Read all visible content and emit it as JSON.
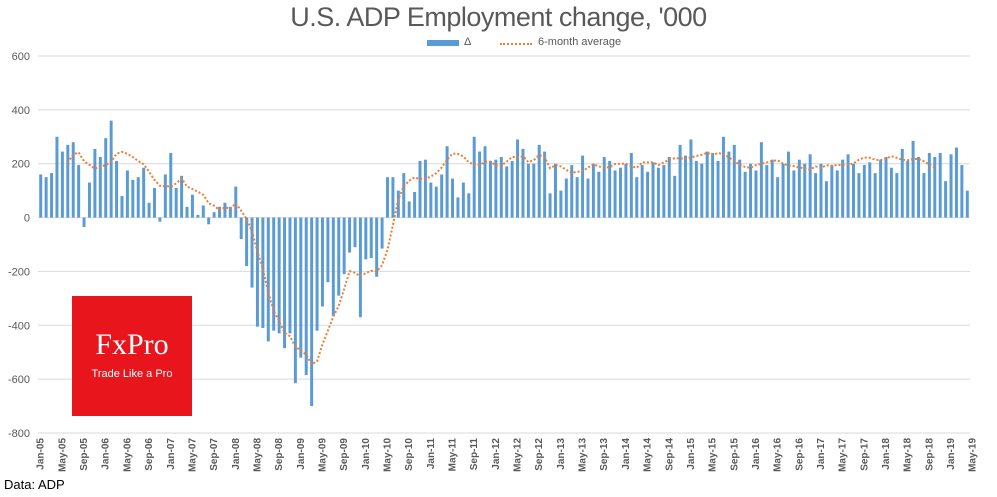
{
  "chart_data": {
    "type": "bar",
    "title": "U.S. ADP Employment change, '000",
    "xlabel": "",
    "ylabel": "",
    "ylim": [
      -800,
      600
    ],
    "yticks": [
      600,
      400,
      200,
      0,
      -200,
      -400,
      -600,
      -800
    ],
    "grid": true,
    "legend_position": "top-center",
    "legend": [
      "Δ",
      "6-month average"
    ],
    "x_tick_labels": [
      "Jan-05",
      "May-05",
      "Sep-05",
      "Jan-06",
      "May-06",
      "Sep-06",
      "Jan-07",
      "May-07",
      "Sep-07",
      "Jan-08",
      "May-08",
      "Sep-08",
      "Jan-09",
      "May-09",
      "Sep-09",
      "Jan-10",
      "May-10",
      "Sep-10",
      "Jan-11",
      "May-11",
      "Sep-11",
      "Jan-12",
      "May-12",
      "Sep-12",
      "Jan-13",
      "May-13",
      "Sep-13",
      "Jan-14",
      "May-14",
      "Sep-14",
      "Jan-15",
      "May-15",
      "Sep-15",
      "Jan-16",
      "May-16",
      "Sep-16",
      "Jan-17",
      "May-17",
      "Sep-17",
      "Jan-18",
      "May-18",
      "Sep-18",
      "Jan-19",
      "May-19"
    ],
    "start_month": "Jan-05",
    "series": [
      {
        "name": "Δ",
        "kind": "bar",
        "color": "#5b9bd5",
        "values": [
          160,
          150,
          165,
          300,
          245,
          270,
          280,
          195,
          -35,
          130,
          255,
          225,
          295,
          360,
          210,
          80,
          175,
          140,
          150,
          185,
          55,
          110,
          -15,
          160,
          240,
          110,
          155,
          40,
          85,
          10,
          45,
          -25,
          20,
          40,
          55,
          40,
          115,
          -80,
          -180,
          -260,
          -405,
          -410,
          -460,
          -420,
          -430,
          -485,
          -430,
          -615,
          -520,
          -585,
          -700,
          -420,
          -330,
          -240,
          -365,
          -290,
          -210,
          -130,
          -110,
          -370,
          -155,
          -150,
          -220,
          -115,
          150,
          150,
          100,
          165,
          60,
          95,
          210,
          215,
          130,
          115,
          160,
          265,
          145,
          75,
          130,
          90,
          300,
          245,
          265,
          210,
          215,
          225,
          190,
          210,
          290,
          255,
          200,
          200,
          270,
          245,
          90,
          200,
          100,
          145,
          195,
          150,
          230,
          145,
          200,
          170,
          225,
          210,
          175,
          185,
          200,
          240,
          150,
          195,
          170,
          205,
          185,
          195,
          225,
          155,
          270,
          230,
          290,
          210,
          200,
          245,
          240,
          210,
          300,
          245,
          270,
          215,
          170,
          200,
          175,
          280,
          195,
          215,
          150,
          200,
          245,
          175,
          215,
          200,
          235,
          165,
          200,
          135,
          195,
          175,
          215,
          235,
          200,
          165,
          195,
          205,
          165,
          215,
          225,
          185,
          165,
          255,
          210,
          285,
          225,
          165,
          240,
          225,
          240,
          135,
          235,
          260,
          195,
          100
        ]
      },
      {
        "name": "6-month average",
        "kind": "line",
        "color": "#ed7d31",
        "values": [
          null,
          null,
          null,
          null,
          null,
          203,
          235,
          242,
          209,
          196,
          181,
          190,
          194,
          208,
          237,
          244,
          237,
          225,
          210,
          198,
          170,
          140,
          118,
          117,
          115,
          127,
          145,
          115,
          106,
          96,
          85,
          53,
          44,
          27,
          38,
          33,
          53,
          25,
          -5,
          -52,
          -126,
          -193,
          -278,
          -347,
          -384,
          -428,
          -441,
          -480,
          -493,
          -510,
          -545,
          -533,
          -470,
          -420,
          -368,
          -328,
          -265,
          -199,
          -205,
          -218,
          -206,
          -198,
          -200,
          -176,
          -120,
          -28,
          68,
          116,
          137,
          149,
          143,
          144,
          152,
          165,
          186,
          215,
          238,
          236,
          227,
          205,
          197,
          196,
          206,
          208,
          193,
          193,
          208,
          225,
          225,
          227,
          206,
          213,
          232,
          225,
          183,
          195,
          190,
          177,
          166,
          170,
          172,
          186,
          198,
          190,
          185,
          187,
          199,
          200,
          200,
          190,
          185,
          205,
          205,
          205,
          195,
          205,
          215,
          220,
          220,
          219,
          223,
          229,
          233,
          241,
          232,
          240,
          235,
          224,
          209,
          196,
          188,
          185,
          195,
          200,
          205,
          210,
          213,
          200,
          193,
          191,
          186,
          183,
          178,
          190,
          185,
          194,
          192,
          196,
          195,
          196,
          201,
          215,
          223,
          222,
          215,
          213,
          219,
          228,
          222,
          215,
          213,
          217,
          218,
          209,
          197,
          185
        ]
      }
    ]
  },
  "footnote": "Data: ADP",
  "logo": {
    "brand": "FxPro",
    "tagline": "Trade Like a Pro",
    "background": "#e8161c"
  }
}
